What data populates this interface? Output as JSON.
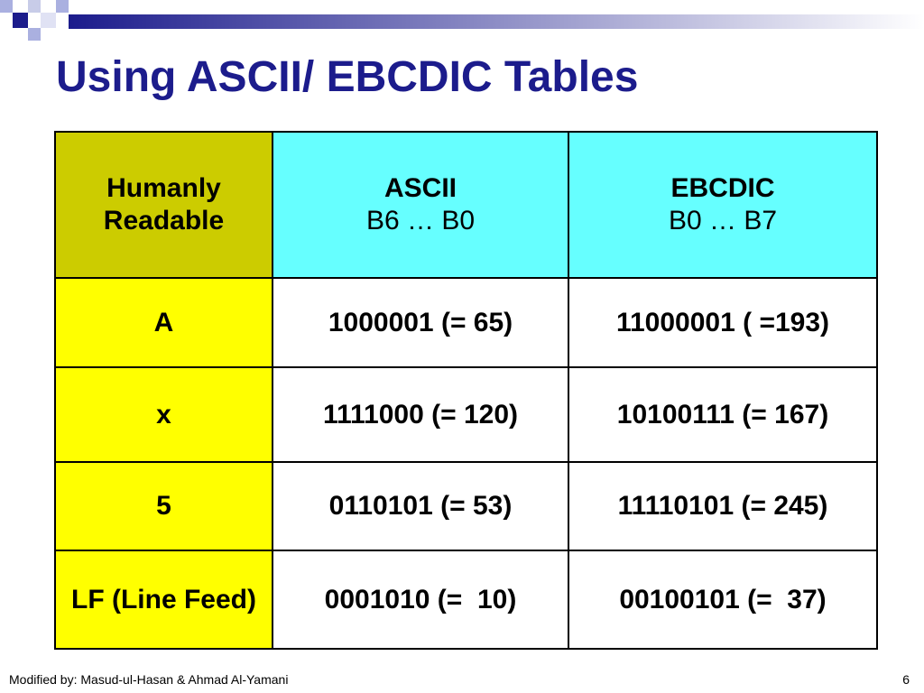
{
  "title": "Using ASCII/ EBCDIC Tables",
  "table": {
    "header": [
      {
        "title": "Humanly Readable"
      },
      {
        "title": "ASCII",
        "subtitle": "B6 … B0"
      },
      {
        "title": "EBCDIC",
        "subtitle": "B0 … B7"
      }
    ],
    "rows": [
      [
        "A",
        "1000001 (= 65)",
        "11000001 ( =193)"
      ],
      [
        "x",
        "1111000 (= 120)",
        "10100111 (= 167)"
      ],
      [
        "5",
        "0110101 (= 53)",
        "11110101 (= 245)"
      ],
      [
        "LF (Line Feed)",
        "0001010 (=  10)",
        "00100101 (=  37)"
      ]
    ]
  },
  "footer": {
    "credit": "Modified by: Masud-ul-Hasan & Ahmad Al-Yamani",
    "page": "6"
  }
}
